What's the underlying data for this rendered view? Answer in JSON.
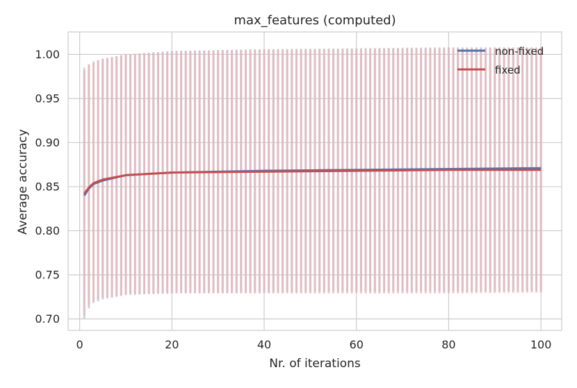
{
  "chart_data": {
    "type": "line",
    "title": "max_features (computed)",
    "xlabel": "Nr. of iterations",
    "ylabel": "Average accuracy",
    "xlim": [
      -2.5,
      104.5
    ],
    "ylim": [
      0.687,
      1.0255
    ],
    "xticks": [
      0,
      20,
      40,
      60,
      80,
      100
    ],
    "xtick_labels": [
      "0",
      "20",
      "40",
      "60",
      "80",
      "100"
    ],
    "yticks": [
      0.7,
      0.75,
      0.8,
      0.85,
      0.9,
      0.95,
      1.0
    ],
    "ytick_labels": [
      "0.70",
      "0.75",
      "0.80",
      "0.85",
      "0.90",
      "0.95",
      "1.00"
    ],
    "grid": true,
    "legend": {
      "position": "top-right"
    },
    "x": {
      "start": 1,
      "end": 100,
      "step": 1
    },
    "series": [
      {
        "name": "non-fixed",
        "color": "#4c72b0",
        "error_bar_color": "#b4c4dc",
        "mean_at": {
          "1": 0.84,
          "2": 0.848,
          "3": 0.853,
          "5": 0.857,
          "10": 0.863,
          "20": 0.866,
          "40": 0.868,
          "60": 0.869,
          "80": 0.87,
          "100": 0.871
        },
        "lower_at": {
          "1": 0.7,
          "2": 0.712,
          "3": 0.718,
          "5": 0.722,
          "10": 0.727,
          "20": 0.729,
          "40": 0.73,
          "60": 0.731,
          "80": 0.731,
          "100": 0.732
        },
        "upper_at": {
          "1": 0.982,
          "2": 0.988,
          "3": 0.991,
          "5": 0.995,
          "10": 1.0,
          "20": 1.004,
          "40": 1.006,
          "60": 1.007,
          "80": 1.008,
          "100": 1.008
        }
      },
      {
        "name": "fixed",
        "color": "#c44e52",
        "error_bar_color": "#e8b6b5",
        "mean_at": {
          "1": 0.842,
          "2": 0.849,
          "3": 0.854,
          "5": 0.858,
          "10": 0.863,
          "20": 0.866,
          "40": 0.867,
          "60": 0.868,
          "80": 0.869,
          "100": 0.869
        },
        "lower_at": {
          "1": 0.704,
          "2": 0.715,
          "3": 0.72,
          "5": 0.724,
          "10": 0.728,
          "20": 0.729,
          "40": 0.729,
          "60": 0.729,
          "80": 0.729,
          "100": 0.73
        },
        "upper_at": {
          "1": 0.985,
          "2": 0.989,
          "3": 0.992,
          "5": 0.995,
          "10": 1.0,
          "20": 1.003,
          "40": 1.005,
          "60": 1.006,
          "80": 1.007,
          "100": 1.007
        }
      }
    ]
  }
}
